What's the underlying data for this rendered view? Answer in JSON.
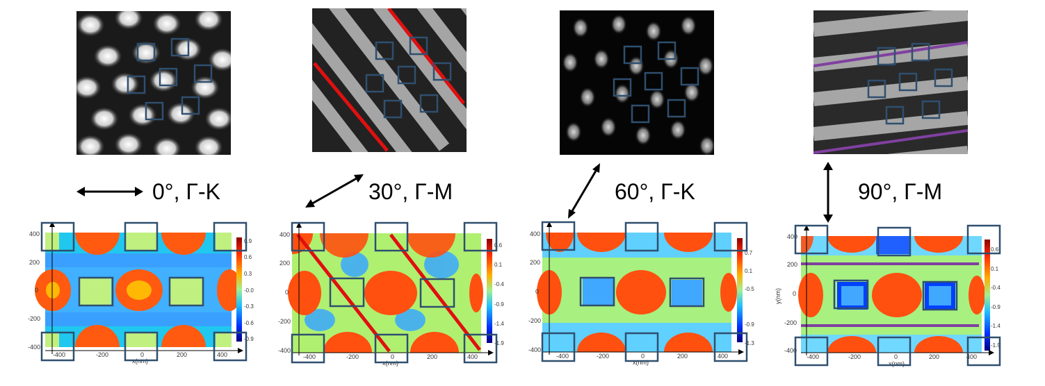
{
  "panels": [
    {
      "label": "0°, Γ-K",
      "colorbar_ticks": [
        "0.9",
        "0.6",
        "0.3",
        "-0.0",
        "-0.3",
        "-0.6",
        "-0.9"
      ]
    },
    {
      "label": "30°, Γ-M",
      "colorbar_ticks": [
        "0.6",
        "0.1",
        "-0.4",
        "-0.9",
        "-1.4",
        "-1.9"
      ]
    },
    {
      "label": "60°, Γ-K",
      "colorbar_ticks": [
        "0.7",
        "0.1",
        "-0.5",
        "-0.9",
        "-1.3"
      ]
    },
    {
      "label": "90°, Γ-M",
      "colorbar_ticks": [
        "0.6",
        "0.1",
        "-0.4",
        "-0.9",
        "-1.4",
        "-1.9"
      ]
    }
  ],
  "axes": {
    "xlabel": "x(nm)",
    "ylabel": "y(nm)",
    "xticks": [
      "-400",
      "-200",
      "0",
      "200",
      "400"
    ],
    "yticks": [
      "400",
      "200",
      "0",
      "-200",
      "-400"
    ]
  },
  "colors": {
    "box": "#2f4f6f",
    "red_line": "#e01010",
    "purple_line": "#8040a0"
  }
}
